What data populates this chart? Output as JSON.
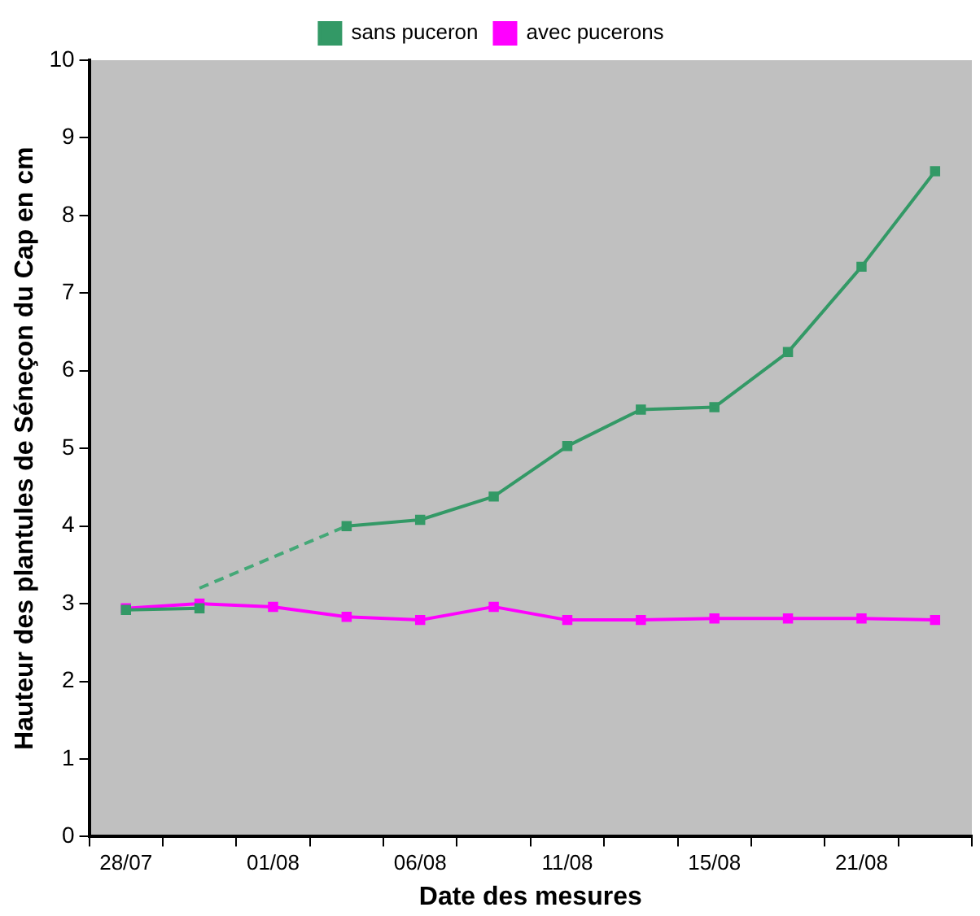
{
  "chart_data": {
    "type": "line",
    "xlabel": "Date des mesures",
    "ylabel": "Hauteur des plantules de Séneçon du Cap en cm",
    "categories": [
      "28/07",
      null,
      "01/08",
      null,
      "06/08",
      null,
      "11/08",
      null,
      "15/08",
      null,
      "21/08",
      null
    ],
    "series": [
      {
        "name": "sans puceron",
        "color": "#339966",
        "values": [
          2.92,
          2.94,
          null,
          4.0,
          4.08,
          4.38,
          5.03,
          5.5,
          5.53,
          6.24,
          7.34,
          8.57
        ]
      },
      {
        "name": "avec pucerons",
        "color": "#ff00ff",
        "values": [
          2.94,
          3.0,
          2.96,
          2.83,
          2.79,
          2.96,
          2.79,
          2.79,
          2.81,
          2.81,
          2.81,
          2.79
        ]
      },
      {
        "type": "line",
        "color": "#44a877",
        "values": [
          null,
          3.2,
          3.6,
          4.0,
          null,
          null,
          null,
          null,
          null,
          null,
          null,
          null
        ],
        "line_style": "dashed",
        "marker": "none"
      }
    ],
    "ylim": [
      0,
      10
    ],
    "yticks": [
      0,
      1,
      2,
      3,
      4,
      5,
      6,
      7,
      8,
      9,
      10
    ],
    "grid": false,
    "legend": "top",
    "marker": "square",
    "line_style": "solid"
  }
}
